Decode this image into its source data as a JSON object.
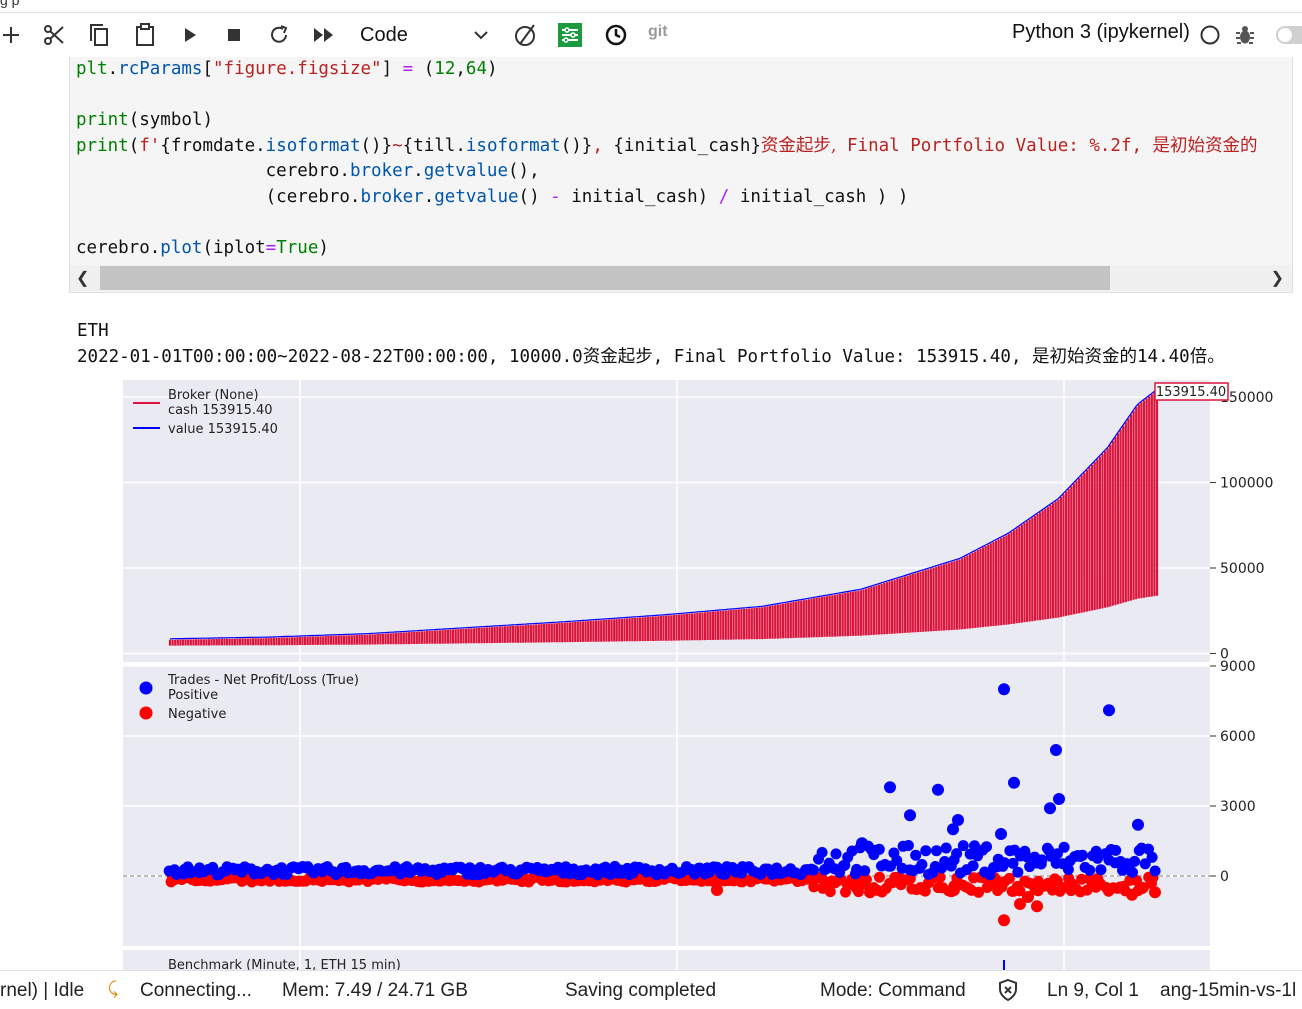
{
  "toolbar": {
    "cell_type": "Code",
    "git_label": "git",
    "kernel_name": "Python 3 (ipykernel)",
    "success_color": "#1a9c3e"
  },
  "code": {
    "lines": [
      "plt.rcParams[\"figure.figsize\"] = (12,64)",
      "",
      "print(symbol)",
      "print(f'{fromdate.isoformat()}~{till.isoformat()}, {initial_cash}资金起步, Final Portfolio Value: %.2f, 是初始资金的",
      "                   cerebro.broker.getvalue(),",
      "                   (cerebro.broker.getvalue() - initial_cash) / initial_cash ) )",
      "",
      "cerebro.plot(iplot=True)"
    ]
  },
  "output": {
    "line1": "ETH",
    "line2": "2022-01-01T00:00:00~2022-08-22T00:00:00, 10000.0资金起步, Final Portfolio Value: 153915.40, 是初始资金的14.40倍。"
  },
  "chart_data": [
    {
      "type": "line",
      "legend_title": "Broker (None)",
      "series": [
        {
          "name": "cash 153915.40",
          "color": "#dc143c"
        },
        {
          "name": "value 153915.40",
          "color": "#0000ff"
        }
      ],
      "last_value_label": "153915.40",
      "yticks": [
        0,
        50000,
        100000,
        150000
      ],
      "ylim": [
        -5000,
        160000
      ],
      "trend_value": [
        [
          0,
          8000
        ],
        [
          0.1,
          9000
        ],
        [
          0.2,
          11000
        ],
        [
          0.3,
          14500
        ],
        [
          0.4,
          18000
        ],
        [
          0.5,
          22000
        ],
        [
          0.6,
          27000
        ],
        [
          0.7,
          37000
        ],
        [
          0.8,
          55000
        ],
        [
          0.85,
          70000
        ],
        [
          0.9,
          90000
        ],
        [
          0.95,
          120000
        ],
        [
          0.98,
          145000
        ],
        [
          1.0,
          153915
        ]
      ],
      "legend_position": "upper-left",
      "grid": true
    },
    {
      "type": "scatter",
      "legend_title": "Trades - Net Profit/Loss (True)",
      "series": [
        {
          "name": "Positive",
          "color": "#0000ff"
        },
        {
          "name": "Negative",
          "color": "#ff0000"
        }
      ],
      "yticks": [
        0,
        3000,
        6000,
        9000
      ],
      "ylim": [
        -3000,
        9000
      ],
      "notable_positive": [
        8000,
        7100,
        5400,
        4000,
        3800,
        3700,
        3300,
        2900,
        2600,
        2400,
        2200,
        2000,
        1800
      ],
      "notable_negative": [
        -1900,
        -1300,
        -1200,
        -900,
        -800,
        -700
      ],
      "zero_line": "dashed",
      "legend_position": "upper-left",
      "grid": true
    },
    {
      "type": "line",
      "legend_title": "Benchmark (Minute, 1, ETH 15 min)"
    }
  ],
  "status": {
    "kernel_state": "rnel) | Idle",
    "connecting": "Connecting...",
    "mem": "Mem: 7.49 / 24.71 GB",
    "saving": "Saving completed",
    "mode": "Mode: Command",
    "position": "Ln 9, Col 1",
    "filename": "ang-15min-vs-1l"
  }
}
